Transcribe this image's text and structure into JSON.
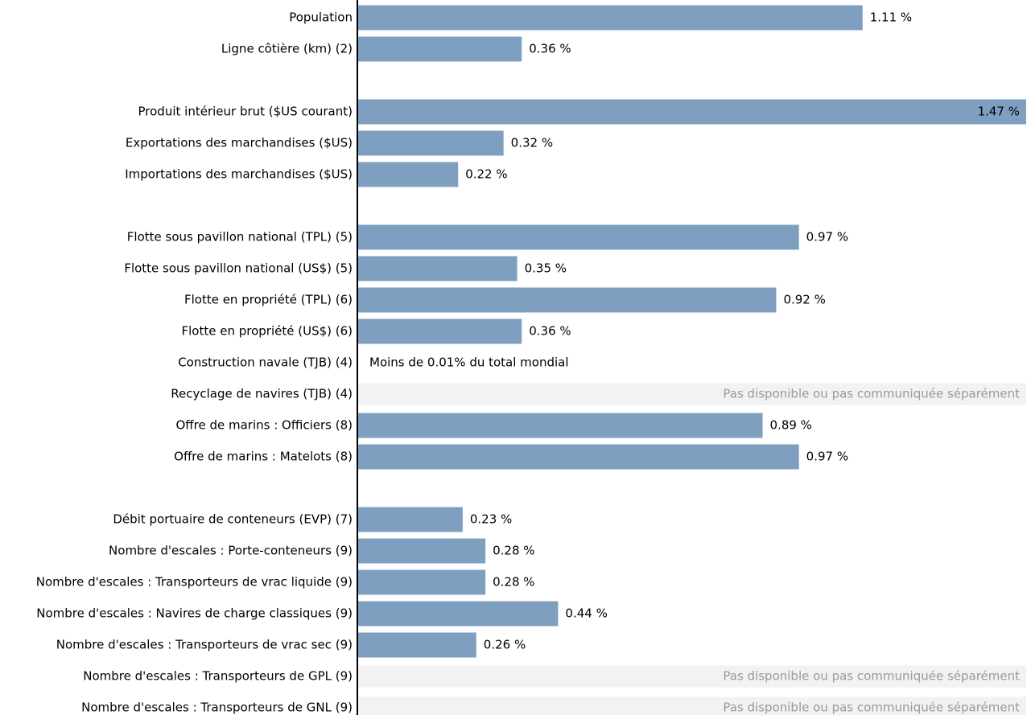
{
  "chart_data": {
    "type": "bar",
    "orientation": "horizontal",
    "color": "#7f9fc0",
    "categories": [
      "Population",
      "Ligne côtière (km) (2)",
      null,
      "Produit intérieur brut ($US courant)",
      "Exportations des marchandises ($US)",
      "Importations des marchandises ($US)",
      null,
      "Flotte sous pavillon national (TPL) (5)",
      "Flotte sous pavillon national (US$) (5)",
      "Flotte en propriété (TPL) (6)",
      "Flotte en propriété (US$) (6)",
      "Construction navale (TJB) (4)",
      "Recyclage de navires (TJB) (4)",
      "Offre de marins : Officiers (8)",
      "Offre de marins : Matelots (8)",
      null,
      "Débit portuaire de conteneurs (EVP) (7)",
      "Nombre d'escales : Porte-conteneurs (9)",
      "Nombre d'escales : Transporteurs de vrac liquide (9)",
      "Nombre d'escales : Navires de charge classiques (9)",
      "Nombre d'escales : Transporteurs de vrac sec (9)",
      "Nombre d'escales : Transporteurs de GPL (9)",
      "Nombre d'escales : Transporteurs de GNL (9)"
    ],
    "values": [
      1.11,
      0.36,
      null,
      1.47,
      0.32,
      0.22,
      null,
      0.97,
      0.35,
      0.92,
      0.36,
      null,
      null,
      0.89,
      0.97,
      null,
      0.23,
      0.28,
      0.28,
      0.44,
      0.26,
      null,
      null
    ],
    "value_labels": [
      "1.11 %",
      "0.36 %",
      null,
      "1.47 %",
      "0.32 %",
      "0.22 %",
      null,
      "0.97 %",
      "0.35 %",
      "0.92 %",
      "0.36 %",
      null,
      null,
      "0.89 %",
      "0.97 %",
      null,
      "0.23 %",
      "0.28 %",
      "0.28 %",
      "0.44 %",
      "0.26 %",
      null,
      null
    ],
    "notes": [
      null,
      null,
      null,
      null,
      null,
      null,
      null,
      null,
      null,
      null,
      null,
      "Moins de 0.01% du total mondial",
      "Pas disponible ou pas communiquée séparément",
      null,
      null,
      null,
      null,
      null,
      null,
      null,
      null,
      "Pas disponible ou pas communiquée séparément",
      "Pas disponible ou pas communiquée séparément"
    ],
    "xlim": [
      0,
      1.47
    ]
  }
}
